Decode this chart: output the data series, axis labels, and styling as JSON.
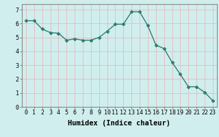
{
  "x": [
    0,
    1,
    2,
    3,
    4,
    5,
    6,
    7,
    8,
    9,
    10,
    11,
    12,
    13,
    14,
    15,
    16,
    17,
    18,
    19,
    20,
    21,
    22,
    23
  ],
  "y": [
    6.2,
    6.2,
    5.6,
    5.35,
    5.3,
    4.8,
    4.9,
    4.8,
    4.8,
    5.0,
    5.45,
    5.95,
    5.95,
    6.85,
    6.85,
    5.85,
    4.45,
    4.2,
    3.2,
    2.35,
    1.45,
    1.45,
    1.05,
    0.45
  ],
  "line_color": "#2e7d6e",
  "marker": "D",
  "marker_size": 2.5,
  "bg_color": "#d0eeee",
  "grid_color": "#e8b8b8",
  "xlabel": "Humidex (Indice chaleur)",
  "ylabel": "",
  "title": "",
  "xlim": [
    -0.5,
    23.5
  ],
  "ylim": [
    0,
    7.4
  ],
  "yticks": [
    0,
    1,
    2,
    3,
    4,
    5,
    6,
    7
  ],
  "xticks": [
    0,
    1,
    2,
    3,
    4,
    5,
    6,
    7,
    8,
    9,
    10,
    11,
    12,
    13,
    14,
    15,
    16,
    17,
    18,
    19,
    20,
    21,
    22,
    23
  ],
  "tick_label_fontsize": 6,
  "xlabel_fontsize": 7.5
}
